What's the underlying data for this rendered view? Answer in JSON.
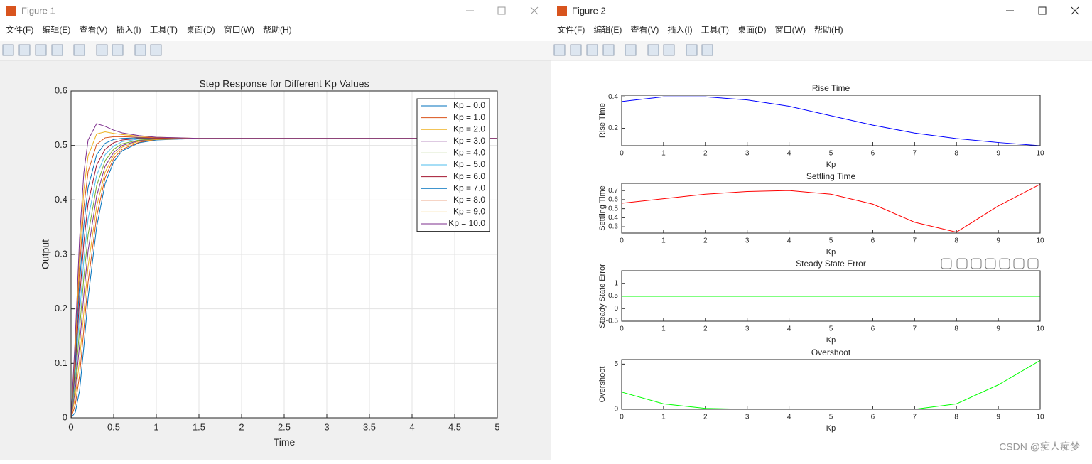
{
  "windows": [
    {
      "title": "Figure 1",
      "menu": [
        "文件(F)",
        "编辑(E)",
        "查看(V)",
        "插入(I)",
        "工具(T)",
        "桌面(D)",
        "窗口(W)",
        "帮助(H)"
      ]
    },
    {
      "title": "Figure 2",
      "menu": [
        "文件(F)",
        "编辑(E)",
        "查看(V)",
        "插入(I)",
        "工具(T)",
        "桌面(D)",
        "窗口(W)",
        "帮助(H)"
      ]
    }
  ],
  "watermark": "CSDN @痴人痴梦",
  "chart_data": [
    {
      "type": "line",
      "title": "Step Response for Different Kp Values",
      "xlabel": "Time",
      "ylabel": "Output",
      "x": [
        0,
        0.05,
        0.1,
        0.15,
        0.2,
        0.3,
        0.4,
        0.5,
        0.6,
        0.8,
        1.0,
        1.5,
        2,
        5
      ],
      "xlim": [
        0,
        5
      ],
      "ylim": [
        0,
        0.6
      ],
      "xticks": [
        0,
        0.5,
        1,
        1.5,
        2,
        2.5,
        3,
        3.5,
        4,
        4.5,
        5
      ],
      "yticks": [
        0,
        0.1,
        0.2,
        0.3,
        0.4,
        0.5,
        0.6
      ],
      "grid": true,
      "legend": "northeast",
      "series": [
        {
          "name": "Kp = 0.0",
          "color": "#0072BD",
          "values": [
            0,
            0.01,
            0.05,
            0.13,
            0.22,
            0.35,
            0.43,
            0.47,
            0.49,
            0.505,
            0.51,
            0.513,
            0.513,
            0.513
          ]
        },
        {
          "name": "Kp = 1.0",
          "color": "#D95319",
          "values": [
            0,
            0.024,
            0.078,
            0.162,
            0.249,
            0.369,
            0.441,
            0.476,
            0.493,
            0.506,
            0.511,
            0.513,
            0.513,
            0.513
          ]
        },
        {
          "name": "Kp = 2.0",
          "color": "#EDB120",
          "values": [
            0,
            0.038,
            0.106,
            0.194,
            0.278,
            0.388,
            0.451,
            0.482,
            0.497,
            0.508,
            0.511,
            0.513,
            0.513,
            0.513
          ]
        },
        {
          "name": "Kp = 3.0",
          "color": "#7E2F8E",
          "values": [
            0,
            0.052,
            0.134,
            0.226,
            0.307,
            0.407,
            0.462,
            0.487,
            0.5,
            0.509,
            0.512,
            0.513,
            0.513,
            0.513
          ]
        },
        {
          "name": "Kp = 4.0",
          "color": "#77AC30",
          "values": [
            0,
            0.066,
            0.162,
            0.258,
            0.336,
            0.426,
            0.472,
            0.493,
            0.503,
            0.51,
            0.512,
            0.513,
            0.513,
            0.513
          ]
        },
        {
          "name": "Kp = 5.0",
          "color": "#4DBEEE",
          "values": [
            0,
            0.08,
            0.19,
            0.29,
            0.365,
            0.445,
            0.483,
            0.499,
            0.507,
            0.512,
            0.513,
            0.513,
            0.513,
            0.513
          ]
        },
        {
          "name": "Kp = 6.0",
          "color": "#A2142F",
          "values": [
            0,
            0.094,
            0.218,
            0.322,
            0.394,
            0.464,
            0.493,
            0.505,
            0.51,
            0.513,
            0.513,
            0.513,
            0.513,
            0.513
          ]
        },
        {
          "name": "Kp = 7.0",
          "color": "#0072BD",
          "values": [
            0,
            0.108,
            0.246,
            0.354,
            0.423,
            0.483,
            0.504,
            0.511,
            0.513,
            0.514,
            0.514,
            0.513,
            0.513,
            0.513
          ]
        },
        {
          "name": "Kp = 8.0",
          "color": "#D95319",
          "values": [
            0,
            0.122,
            0.274,
            0.386,
            0.452,
            0.502,
            0.514,
            0.516,
            0.516,
            0.515,
            0.514,
            0.513,
            0.513,
            0.513
          ]
        },
        {
          "name": "Kp = 9.0",
          "color": "#EDB120",
          "values": [
            0,
            0.136,
            0.302,
            0.418,
            0.481,
            0.521,
            0.525,
            0.522,
            0.52,
            0.517,
            0.515,
            0.513,
            0.513,
            0.513
          ]
        },
        {
          "name": "Kp = 10.0",
          "color": "#7E2F8E",
          "values": [
            0,
            0.15,
            0.33,
            0.45,
            0.51,
            0.54,
            0.535,
            0.528,
            0.523,
            0.518,
            0.515,
            0.513,
            0.513,
            0.513
          ]
        }
      ]
    },
    {
      "type": "line",
      "title": "Rise Time",
      "xlabel": "Kp",
      "ylabel": "Rise Time",
      "x": [
        0,
        1,
        2,
        3,
        4,
        5,
        6,
        7,
        8,
        9,
        10
      ],
      "xlim": [
        0,
        10
      ],
      "ylim": [
        0.09,
        0.41
      ],
      "xticks": [
        0,
        1,
        2,
        3,
        4,
        5,
        6,
        7,
        8,
        9,
        10
      ],
      "yticks": [
        0.2,
        0.4
      ],
      "grid": false,
      "series": [
        {
          "color": "#0000ff",
          "values": [
            0.37,
            0.4,
            0.4,
            0.38,
            0.34,
            0.28,
            0.22,
            0.17,
            0.135,
            0.11,
            0.09
          ]
        }
      ]
    },
    {
      "type": "line",
      "title": "Settling Time",
      "xlabel": "Kp",
      "ylabel": "Settling Time",
      "x": [
        0,
        1,
        2,
        3,
        4,
        5,
        6,
        7,
        8,
        9,
        10
      ],
      "xlim": [
        0,
        10
      ],
      "ylim": [
        0.23,
        0.78
      ],
      "xticks": [
        0,
        1,
        2,
        3,
        4,
        5,
        6,
        7,
        8,
        9,
        10
      ],
      "yticks": [
        0.3,
        0.4,
        0.5,
        0.6,
        0.7
      ],
      "grid": false,
      "series": [
        {
          "color": "#ff0000",
          "values": [
            0.56,
            0.61,
            0.66,
            0.69,
            0.7,
            0.66,
            0.55,
            0.35,
            0.24,
            0.53,
            0.77
          ]
        }
      ]
    },
    {
      "type": "line",
      "title": "Steady State Error",
      "xlabel": "Kp",
      "ylabel": "Steady State Error",
      "x": [
        0,
        1,
        2,
        3,
        4,
        5,
        6,
        7,
        8,
        9,
        10
      ],
      "xlim": [
        0,
        10
      ],
      "ylim": [
        -0.5,
        1.5
      ],
      "xticks": [
        0,
        1,
        2,
        3,
        4,
        5,
        6,
        7,
        8,
        9,
        10
      ],
      "yticks": [
        -0.5,
        0,
        0.5,
        1
      ],
      "grid": false,
      "series": [
        {
          "color": "#00ff00",
          "values": [
            0.487,
            0.487,
            0.487,
            0.487,
            0.487,
            0.487,
            0.487,
            0.487,
            0.487,
            0.487,
            0.487
          ]
        }
      ]
    },
    {
      "type": "line",
      "title": "Overshoot",
      "xlabel": "Kp",
      "ylabel": "Overshoot",
      "x": [
        0,
        1,
        2,
        3,
        4,
        5,
        6,
        7,
        8,
        9,
        10
      ],
      "xlim": [
        0,
        10
      ],
      "ylim": [
        0,
        5.5
      ],
      "xticks": [
        0,
        1,
        2,
        3,
        4,
        5,
        6,
        7,
        8,
        9,
        10
      ],
      "yticks": [
        0,
        5
      ],
      "grid": false,
      "series": [
        {
          "color": "#00ff00",
          "values": [
            1.9,
            0.6,
            0.1,
            0,
            0,
            0,
            0,
            0,
            0.6,
            2.7,
            5.4
          ]
        }
      ]
    }
  ]
}
